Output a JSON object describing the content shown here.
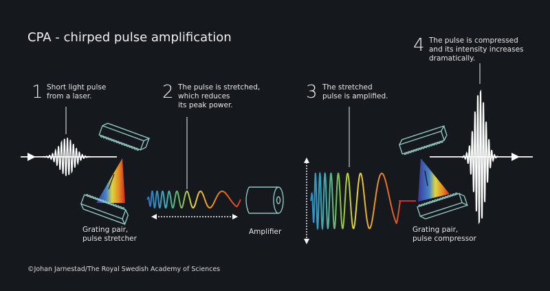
{
  "title": "CPA - chirped pulse amplification",
  "steps": [
    {
      "number": "1",
      "text": "Short light pulse\nfrom a laser."
    },
    {
      "number": "2",
      "text": "The pulse is stretched,\nwhich reduces\nits peak power."
    },
    {
      "number": "3",
      "text": "The stretched\npulse is amplified."
    },
    {
      "number": "4",
      "text": "The pulse is compressed\nand its intensity increases\ndramatically."
    }
  ],
  "labels": {
    "stretcher": "Grating pair,\npulse stretcher",
    "amplifier": "Amplifier",
    "compressor": "Grating pair,\npulse compressor"
  },
  "credit": "©Johan Jarnestad/The Royal Swedish Academy of Sciences",
  "colors": {
    "background": "#15191d",
    "grating": "#8fc7c4",
    "pulse": "#ffffff",
    "spectrum": [
      "#4a3d9a",
      "#2f8fd0",
      "#4cc08a",
      "#f2e030",
      "#f08a20",
      "#d8262a"
    ]
  }
}
